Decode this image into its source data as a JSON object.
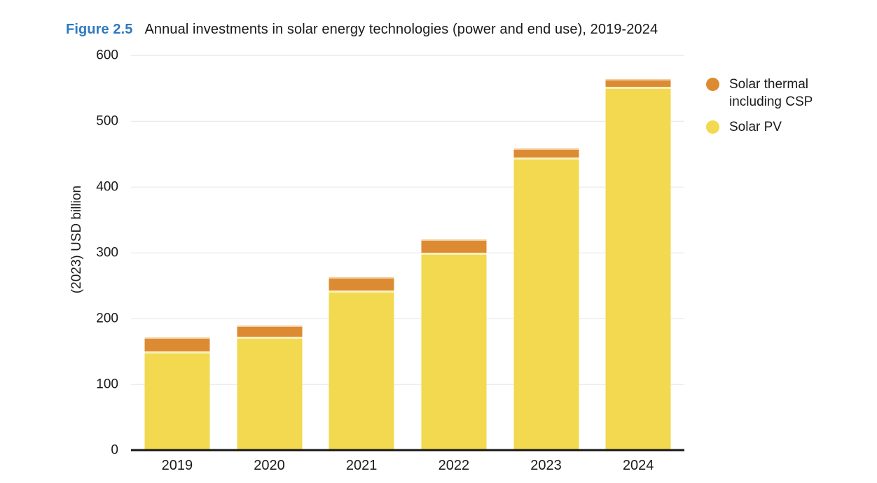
{
  "header": {
    "figure_label": "Figure 2.5",
    "title": "Annual investments in solar energy technologies (power and end use), 2019-2024"
  },
  "y_axis": {
    "title": "(2023) USD billion"
  },
  "legend": {
    "items": [
      {
        "label": "Solar thermal\nincluding CSP",
        "color": "#DD8B33"
      },
      {
        "label": "Solar PV",
        "color": "#F2D94F"
      }
    ]
  },
  "chart_data": {
    "type": "bar",
    "stacked": true,
    "title": "Annual investments in solar energy technologies (power and end use), 2019-2024",
    "categories": [
      "2019",
      "2020",
      "2021",
      "2022",
      "2023",
      "2024"
    ],
    "series": [
      {
        "name": "Solar thermal including CSP",
        "color": "#DD8B33",
        "values": [
          21,
          17,
          20,
          20,
          14,
          12
        ]
      },
      {
        "name": "Solar PV",
        "color": "#F2D94F",
        "values": [
          150,
          172,
          243,
          300,
          445,
          552
        ]
      }
    ],
    "totals": [
      171,
      189,
      263,
      320,
      459,
      564
    ],
    "xlabel": "",
    "ylabel": "(2023) USD billion",
    "ylim": [
      0,
      600
    ],
    "yticks": [
      0,
      100,
      200,
      300,
      400,
      500,
      600
    ],
    "grid": "horizontal",
    "legend_position": "right",
    "colors": {
      "figure_label_blue": "#2E7ABF",
      "gridline": "#e6e6e6",
      "axis": "#161616"
    }
  }
}
